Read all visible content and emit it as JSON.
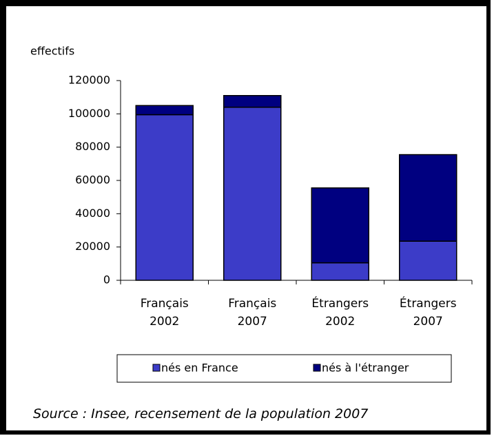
{
  "chart_data": {
    "type": "stacked_bar",
    "y_axis_label": "effectifs",
    "categories": [
      "Français 2002",
      "Français 2007",
      "Étrangers 2002",
      "Étrangers 2007"
    ],
    "series": [
      {
        "name": "nés en France",
        "color": "#3c3cc8",
        "values": [
          99500,
          104000,
          10500,
          23500
        ]
      },
      {
        "name": "nés à l'étranger",
        "color": "#000080",
        "values": [
          5500,
          7000,
          45000,
          52000
        ]
      }
    ],
    "ylim": [
      0,
      120000
    ],
    "yticks": [
      0,
      20000,
      40000,
      60000,
      80000,
      100000,
      120000
    ],
    "legend": "bottom",
    "source": "Source : Insee, recensement de la population 2007"
  }
}
